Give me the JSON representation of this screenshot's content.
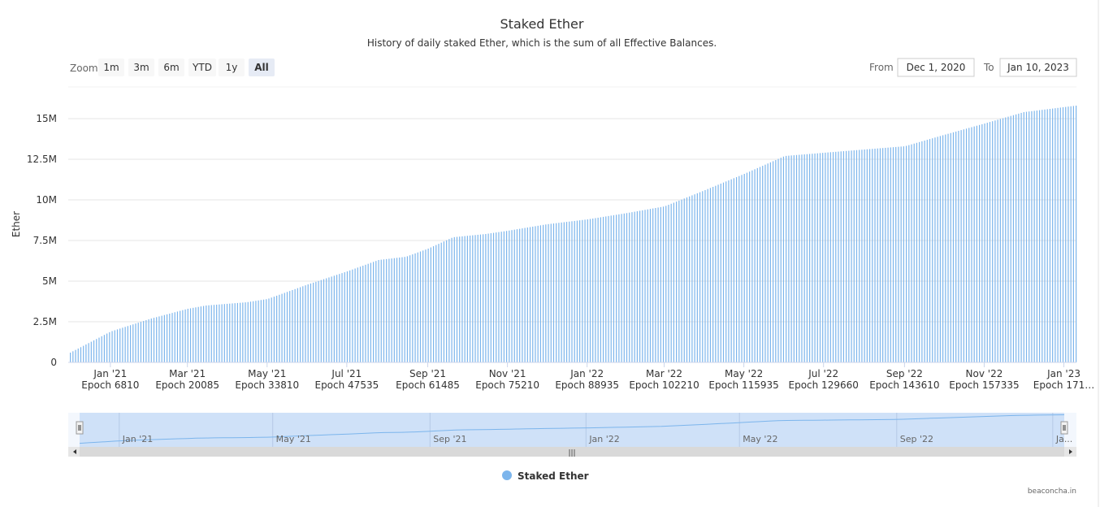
{
  "chart_data": {
    "type": "bar",
    "title": "Staked Ether",
    "subtitle": "History of daily staked Ether, which is the sum of all Effective Balances.",
    "ylabel": "Ether",
    "ylim": [
      0,
      16000000
    ],
    "yticks": [
      0,
      2500000,
      5000000,
      7500000,
      10000000,
      12500000,
      15000000
    ],
    "ytick_labels": [
      "0",
      "2.5M",
      "5M",
      "7.5M",
      "10M",
      "12.5M",
      "15M"
    ],
    "x_range": [
      "2020-12-01",
      "2023-01-10"
    ],
    "xticks": [
      {
        "date": "2021-01-01",
        "label": "Jan '21",
        "epoch": "Epoch 6810"
      },
      {
        "date": "2021-03-01",
        "label": "Mar '21",
        "epoch": "Epoch 20085"
      },
      {
        "date": "2021-05-01",
        "label": "May '21",
        "epoch": "Epoch 33810"
      },
      {
        "date": "2021-07-01",
        "label": "Jul '21",
        "epoch": "Epoch 47535"
      },
      {
        "date": "2021-09-01",
        "label": "Sep '21",
        "epoch": "Epoch 61485"
      },
      {
        "date": "2021-11-01",
        "label": "Nov '21",
        "epoch": "Epoch 75210"
      },
      {
        "date": "2022-01-01",
        "label": "Jan '22",
        "epoch": "Epoch 88935"
      },
      {
        "date": "2022-03-01",
        "label": "Mar '22",
        "epoch": "Epoch 102210"
      },
      {
        "date": "2022-05-01",
        "label": "May '22",
        "epoch": "Epoch 115935"
      },
      {
        "date": "2022-07-01",
        "label": "Jul '22",
        "epoch": "Epoch 129660"
      },
      {
        "date": "2022-09-01",
        "label": "Sep '22",
        "epoch": "Epoch 143610"
      },
      {
        "date": "2022-11-01",
        "label": "Nov '22",
        "epoch": "Epoch 157335"
      },
      {
        "date": "2023-01-01",
        "label": "Jan '23",
        "epoch": "Epoch 171…"
      }
    ],
    "series": [
      {
        "name": "Staked Ether",
        "color": "#7cb5ec",
        "points": [
          [
            "2020-12-01",
            600000
          ],
          [
            "2021-01-01",
            1900000
          ],
          [
            "2021-02-01",
            2700000
          ],
          [
            "2021-03-01",
            3300000
          ],
          [
            "2021-03-15",
            3500000
          ],
          [
            "2021-04-15",
            3700000
          ],
          [
            "2021-05-01",
            3900000
          ],
          [
            "2021-06-01",
            4800000
          ],
          [
            "2021-07-01",
            5600000
          ],
          [
            "2021-07-25",
            6300000
          ],
          [
            "2021-08-15",
            6500000
          ],
          [
            "2021-09-01",
            7000000
          ],
          [
            "2021-09-20",
            7700000
          ],
          [
            "2021-10-15",
            7900000
          ],
          [
            "2021-11-01",
            8100000
          ],
          [
            "2021-12-01",
            8500000
          ],
          [
            "2022-01-01",
            8800000
          ],
          [
            "2022-02-01",
            9200000
          ],
          [
            "2022-03-01",
            9600000
          ],
          [
            "2022-04-01",
            10600000
          ],
          [
            "2022-05-01",
            11600000
          ],
          [
            "2022-06-01",
            12700000
          ],
          [
            "2022-07-01",
            12900000
          ],
          [
            "2022-08-01",
            13100000
          ],
          [
            "2022-09-01",
            13300000
          ],
          [
            "2022-10-01",
            14000000
          ],
          [
            "2022-11-01",
            14700000
          ],
          [
            "2022-12-01",
            15400000
          ],
          [
            "2023-01-10",
            15800000
          ]
        ]
      }
    ],
    "legend": {
      "position": "bottom-center",
      "label": "Staked Ether"
    }
  },
  "zoom": {
    "label": "Zoom",
    "buttons": [
      "1m",
      "3m",
      "6m",
      "YTD",
      "1y",
      "All"
    ],
    "active": "All"
  },
  "range": {
    "from_label": "From",
    "from_value": "Dec 1, 2020",
    "to_label": "To",
    "to_value": "Jan 10, 2023"
  },
  "navigator": {
    "labels": [
      {
        "date": "2021-01-01",
        "label": "Jan '21"
      },
      {
        "date": "2021-05-01",
        "label": "May '21"
      },
      {
        "date": "2021-09-01",
        "label": "Sep '21"
      },
      {
        "date": "2022-01-01",
        "label": "Jan '22"
      },
      {
        "date": "2022-05-01",
        "label": "May '22"
      },
      {
        "date": "2022-09-01",
        "label": "Sep '22"
      },
      {
        "date": "2023-01-01",
        "label": "Ja..."
      }
    ],
    "scrollbar_grip": "|||"
  },
  "credits": "beaconcha.in",
  "colors": {
    "series": "#7cb5ec",
    "navigator_fill": "#cfe1f8",
    "active_button": "#e6ebf5",
    "grid": "#e6e6e6"
  }
}
